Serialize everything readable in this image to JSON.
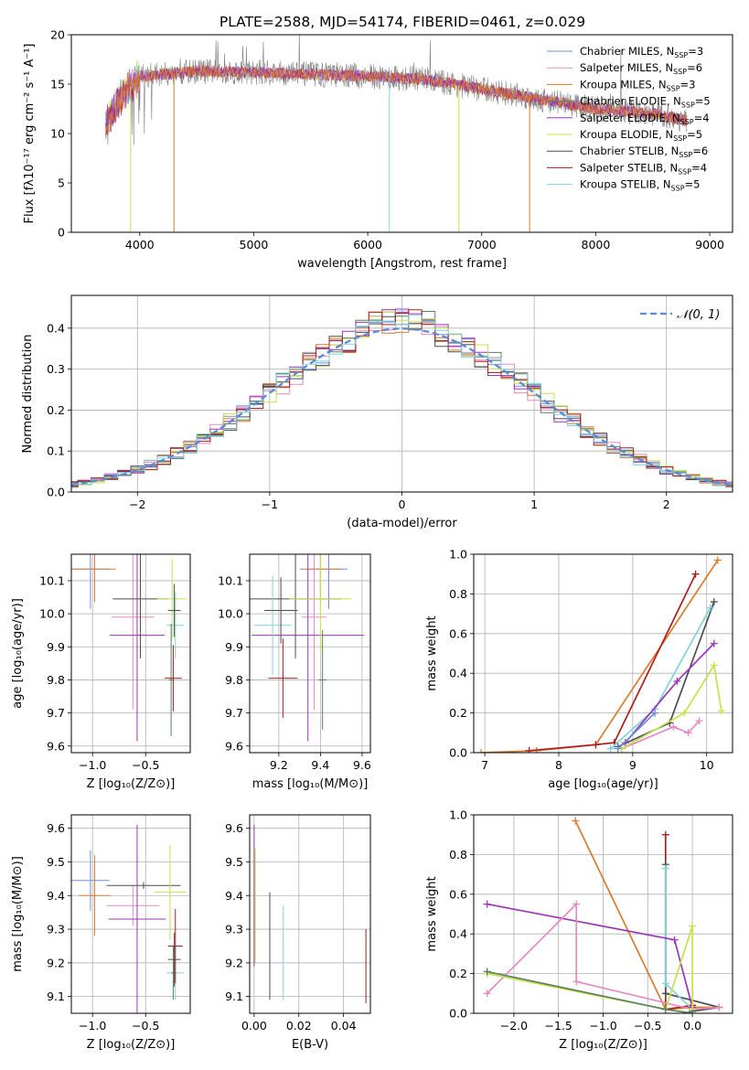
{
  "figure": {
    "title": "PLATE=2588, MJD=54174, FIBERID=0461, z=0.029"
  },
  "series_legend": [
    {
      "name": "Chabrier MILES, N",
      "sub": "SSP",
      "suffix": "=3",
      "color": "#6b8fd6"
    },
    {
      "name": "Salpeter MILES, N",
      "sub": "SSP",
      "suffix": "=6",
      "color": "#e78ac3"
    },
    {
      "name": "Kroupa MILES, N",
      "sub": "SSP",
      "suffix": "=3",
      "color": "#d97c2e"
    },
    {
      "name": "Chabrier ELODIE, N",
      "sub": "SSP",
      "suffix": "=5",
      "color": "#55805a"
    },
    {
      "name": "Salpeter ELODIE, N",
      "sub": "SSP",
      "suffix": "=4",
      "color": "#9a35b5"
    },
    {
      "name": "Kroupa ELODIE, N",
      "sub": "SSP",
      "suffix": "=5",
      "color": "#c8e04a"
    },
    {
      "name": "Chabrier STELIB, N",
      "sub": "SSP",
      "suffix": "=6",
      "color": "#4d4d4d"
    },
    {
      "name": "Salpeter STELIB, N",
      "sub": "SSP",
      "suffix": "=4",
      "color": "#b01c1c"
    },
    {
      "name": "Kroupa STELIB, N",
      "sub": "SSP",
      "suffix": "=5",
      "color": "#7fd3de"
    }
  ],
  "chart_data": [
    {
      "id": "spectrum",
      "type": "line",
      "xlabel": "wavelength [Angstrom, rest frame]",
      "ylabel": "Flux [fλ10⁻¹⁷ erg cm⁻² s⁻¹ A⁻¹]",
      "xlim": [
        3400,
        9200
      ],
      "ylim": [
        0,
        20
      ],
      "xticks": [
        4000,
        5000,
        6000,
        7000,
        8000,
        9000
      ],
      "yticks": [
        0,
        5,
        10,
        15,
        20
      ],
      "data_color": "#808080",
      "data_continuum": {
        "x": [
          3700,
          3800,
          3900,
          4000,
          4200,
          4500,
          5000,
          5500,
          6000,
          6500,
          7000,
          7500,
          8000,
          8500,
          8800
        ],
        "y": [
          11,
          13,
          14.5,
          15.8,
          16,
          16.3,
          16.2,
          16,
          15.8,
          15.5,
          14.5,
          13.5,
          12.5,
          12,
          11.3
        ]
      },
      "models_drop": [
        {
          "series": 2,
          "x": 4300
        },
        {
          "series": 8,
          "x": 6190
        },
        {
          "series": 5,
          "x": 6800
        },
        {
          "series": 2,
          "x": 7420
        },
        {
          "series": 5,
          "x": 3920
        }
      ]
    },
    {
      "id": "residuals",
      "type": "histogram",
      "xlabel": "(data-model)/error",
      "ylabel": "Normed distribution",
      "xlim": [
        -2.5,
        2.5
      ],
      "ylim": [
        0,
        0.48
      ],
      "xticks": [
        -2,
        -1,
        0,
        1,
        2
      ],
      "yticks": [
        0,
        0.1,
        0.2,
        0.3,
        0.4
      ],
      "reference": {
        "label": "𝒩(0, 1)",
        "color": "#5b8ad6",
        "mean": 0,
        "sigma": 1
      }
    },
    {
      "id": "age_vs_Z",
      "type": "errorbar",
      "xlabel": "Z [log₁₀(Z/Z⊙)]",
      "ylabel": "age  [log₁₀(age/yr)]",
      "xlim": [
        -1.2,
        -0.08
      ],
      "ylim": [
        9.58,
        10.18
      ],
      "xticks": [
        -1.0,
        -0.5
      ],
      "yticks": [
        9.6,
        9.7,
        9.8,
        9.9,
        10.0,
        10.1
      ],
      "points": [
        {
          "s": 0,
          "x": -1.02,
          "y": 10.135,
          "ex": 0.18,
          "ey": 0.12
        },
        {
          "s": 2,
          "x": -0.98,
          "y": 10.135,
          "ex": 0.2,
          "ey": 0.1
        },
        {
          "s": 1,
          "x": -0.62,
          "y": 9.99,
          "ex": 0.2,
          "ey": 0.28
        },
        {
          "s": 6,
          "x": -0.55,
          "y": 10.045,
          "ex": 0.26,
          "ey": 0.18
        },
        {
          "s": 4,
          "x": -0.58,
          "y": 9.935,
          "ex": 0.26,
          "ey": 0.32
        },
        {
          "s": 5,
          "x": -0.25,
          "y": 10.045,
          "ex": 0.14,
          "ey": 0.12
        },
        {
          "s": 8,
          "x": -0.22,
          "y": 9.965,
          "ex": 0.08,
          "ey": 0.1
        },
        {
          "s": 3,
          "x": -0.26,
          "y": 9.8,
          "ex": 0.02,
          "ey": 0.17
        },
        {
          "s": 7,
          "x": -0.24,
          "y": 9.805,
          "ex": 0.08,
          "ey": 0.1
        },
        {
          "s": 6,
          "x": -0.23,
          "y": 10.01,
          "ex": 0.06,
          "ey": 0.08
        }
      ]
    },
    {
      "id": "age_vs_mass",
      "type": "errorbar",
      "xlabel": "mass [log₁₀(M/M⊙)]",
      "ylabel": "",
      "xlim": [
        9.06,
        9.64
      ],
      "ylim": [
        9.58,
        10.18
      ],
      "xticks": [
        9.2,
        9.4,
        9.6
      ],
      "yticks": [
        9.6,
        9.7,
        9.8,
        9.9,
        10.0,
        10.1
      ],
      "points": [
        {
          "s": 0,
          "x": 9.44,
          "y": 10.135,
          "ex": 0.09,
          "ey": 0.12
        },
        {
          "s": 2,
          "x": 9.4,
          "y": 10.135,
          "ex": 0.1,
          "ey": 0.1
        },
        {
          "s": 1,
          "x": 9.37,
          "y": 9.99,
          "ex": 0.06,
          "ey": 0.28
        },
        {
          "s": 6,
          "x": 9.28,
          "y": 10.045,
          "ex": 0.22,
          "ey": 0.18
        },
        {
          "s": 4,
          "x": 9.34,
          "y": 9.935,
          "ex": 0.27,
          "ey": 0.32
        },
        {
          "s": 5,
          "x": 9.4,
          "y": 10.045,
          "ex": 0.15,
          "ey": 0.16
        },
        {
          "s": 8,
          "x": 9.17,
          "y": 9.965,
          "ex": 0.09,
          "ey": 0.15
        },
        {
          "s": 3,
          "x": 9.41,
          "y": 9.8,
          "ex": 0.02,
          "ey": 0.15
        },
        {
          "s": 7,
          "x": 9.22,
          "y": 9.805,
          "ex": 0.07,
          "ey": 0.12
        },
        {
          "s": 6,
          "x": 9.21,
          "y": 10.01,
          "ex": 0.08,
          "ey": 0.1
        }
      ]
    },
    {
      "id": "weight_vs_age",
      "type": "line",
      "xlabel": "age  [log₁₀(age/yr)]",
      "ylabel": "mass weight",
      "xlim": [
        6.85,
        10.35
      ],
      "ylim": [
        0,
        1
      ],
      "xticks": [
        7,
        8,
        9,
        10
      ],
      "yticks": [
        0.0,
        0.2,
        0.4,
        0.6,
        0.8,
        1.0
      ],
      "series": [
        {
          "s": 2,
          "x": [
            6.95,
            7.7,
            8.5,
            10.15
          ],
          "y": [
            0.0,
            0.01,
            0.04,
            0.97
          ]
        },
        {
          "s": 7,
          "x": [
            7.6,
            8.5,
            8.75,
            9.85
          ],
          "y": [
            0.01,
            0.04,
            0.05,
            0.9
          ]
        },
        {
          "s": 6,
          "x": [
            8.8,
            9.5,
            10.1
          ],
          "y": [
            0.03,
            0.15,
            0.76
          ]
        },
        {
          "s": 8,
          "x": [
            8.7,
            9.3,
            10.05
          ],
          "y": [
            0.02,
            0.22,
            0.73
          ]
        },
        {
          "s": 4,
          "x": [
            8.9,
            9.6,
            10.1
          ],
          "y": [
            0.05,
            0.36,
            0.55
          ]
        },
        {
          "s": 1,
          "x": [
            8.85,
            9.55,
            9.75,
            9.9
          ],
          "y": [
            0.02,
            0.13,
            0.1,
            0.16
          ]
        },
        {
          "s": 5,
          "x": [
            8.85,
            9.7,
            10.1,
            10.2
          ],
          "y": [
            0.02,
            0.2,
            0.44,
            0.21
          ]
        },
        {
          "s": 0,
          "x": [
            8.8,
            9.3
          ],
          "y": [
            0.02,
            0.2
          ]
        }
      ]
    },
    {
      "id": "mass_vs_Z",
      "type": "errorbar",
      "xlabel": "Z [log₁₀(Z/Z⊙)]",
      "ylabel": "mass [log₁₀(M/M⊙)]",
      "xlim": [
        -1.2,
        -0.08
      ],
      "ylim": [
        9.05,
        9.64
      ],
      "xticks": [
        -1.0,
        -0.5
      ],
      "yticks": [
        9.1,
        9.2,
        9.3,
        9.4,
        9.5,
        9.6
      ],
      "points": [
        {
          "s": 0,
          "x": -1.02,
          "y": 9.445,
          "ex": 0.18,
          "ey": 0.09
        },
        {
          "s": 2,
          "x": -0.98,
          "y": 9.4,
          "ex": 0.15,
          "ey": 0.12
        },
        {
          "s": 1,
          "x": -0.62,
          "y": 9.37,
          "ex": 0.25,
          "ey": 0.06
        },
        {
          "s": 6,
          "x": -0.52,
          "y": 9.43,
          "ex": 0.35,
          "ey": 0.01
        },
        {
          "s": 4,
          "x": -0.58,
          "y": 9.33,
          "ex": 0.27,
          "ey": 0.28
        },
        {
          "s": 5,
          "x": -0.27,
          "y": 9.41,
          "ex": 0.15,
          "ey": 0.14
        },
        {
          "s": 8,
          "x": -0.22,
          "y": 9.17,
          "ex": 0.08,
          "ey": 0.08
        },
        {
          "s": 3,
          "x": -0.24,
          "y": 9.17,
          "ex": 0.02,
          "ey": 0.08
        },
        {
          "s": 7,
          "x": -0.22,
          "y": 9.25,
          "ex": 0.07,
          "ey": 0.11
        },
        {
          "s": 6,
          "x": -0.23,
          "y": 9.21,
          "ex": 0.06,
          "ey": 0.08
        }
      ]
    },
    {
      "id": "mass_vs_ebv",
      "type": "errorbar",
      "xlabel": "E(B-V)",
      "ylabel": "",
      "xlim": [
        -0.002,
        0.052
      ],
      "ylim": [
        9.05,
        9.64
      ],
      "xticks": [
        0.0,
        0.02,
        0.04
      ],
      "yticks": [
        9.1,
        9.2,
        9.3,
        9.4,
        9.5,
        9.6
      ],
      "points": [
        {
          "s": 4,
          "x": 0.0,
          "y": 9.4,
          "ex": 0.0,
          "ey": 0.21
        },
        {
          "s": 5,
          "x": 0.0005,
          "y": 9.37,
          "ex": 0.0,
          "ey": 0.17
        },
        {
          "s": 6,
          "x": 0.007,
          "y": 9.25,
          "ex": 0.0,
          "ey": 0.16
        },
        {
          "s": 8,
          "x": 0.013,
          "y": 9.23,
          "ex": 0.0,
          "ey": 0.14
        },
        {
          "s": 7,
          "x": 0.05,
          "y": 9.19,
          "ex": 0.0,
          "ey": 0.11
        }
      ]
    },
    {
      "id": "weight_vs_Z",
      "type": "line",
      "xlabel": "Z [log₁₀(Z/Z⊙)]",
      "ylabel": "mass weight",
      "xlim": [
        -2.45,
        0.45
      ],
      "ylim": [
        0,
        1
      ],
      "xticks": [
        -2.0,
        -1.5,
        -1.0,
        -0.5,
        0.0
      ],
      "yticks": [
        0.0,
        0.2,
        0.4,
        0.6,
        0.8,
        1.0
      ],
      "series": [
        {
          "s": 2,
          "x": [
            -1.31,
            -0.3,
            0.0,
            0.3
          ],
          "y": [
            0.97,
            0.02,
            0.03,
            0.03
          ]
        },
        {
          "s": 7,
          "x": [
            -0.3,
            -0.3,
            0.0
          ],
          "y": [
            0.9,
            0.02,
            0.04
          ]
        },
        {
          "s": 6,
          "x": [
            -0.3,
            -0.3,
            0.3,
            0.0
          ],
          "y": [
            0.75,
            0.1,
            0.03,
            0.01
          ]
        },
        {
          "s": 8,
          "x": [
            -0.3,
            -0.3,
            0.0
          ],
          "y": [
            0.73,
            0.15,
            0.02
          ]
        },
        {
          "s": 4,
          "x": [
            -2.3,
            -0.2,
            0.0
          ],
          "y": [
            0.55,
            0.37,
            0.03
          ]
        },
        {
          "s": 1,
          "x": [
            -2.3,
            -1.3,
            -1.3,
            0.0,
            0.3
          ],
          "y": [
            0.1,
            0.55,
            0.16,
            0.02,
            0.03
          ]
        },
        {
          "s": 5,
          "x": [
            -2.3,
            -0.3,
            0.0,
            0.0
          ],
          "y": [
            0.2,
            0.02,
            0.44,
            0.02
          ]
        },
        {
          "s": 3,
          "x": [
            -2.3,
            -0.3,
            0.0
          ],
          "y": [
            0.21,
            0.02,
            0.0
          ]
        }
      ]
    }
  ]
}
